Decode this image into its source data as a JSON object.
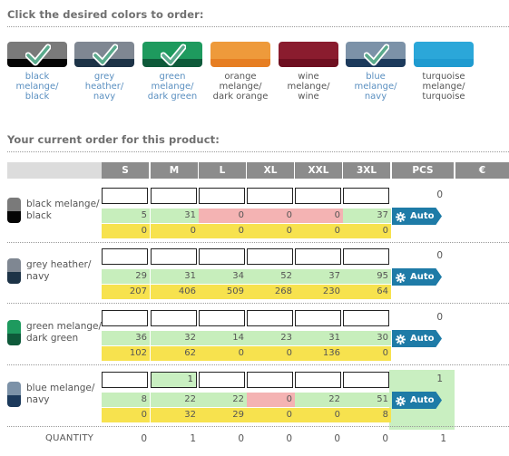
{
  "color_section": {
    "title": "Click the desired colors to order:",
    "swatches": [
      {
        "label": "black melange/ black",
        "top": "#7a7a7a",
        "bottom": "#050505",
        "selected": true
      },
      {
        "label": "grey heather/ navy",
        "top": "#7f8792",
        "bottom": "#1d3347",
        "selected": true
      },
      {
        "label": "green melange/ dark green",
        "top": "#1e9a5e",
        "bottom": "#0e5a3a",
        "selected": true
      },
      {
        "label": "orange melange/ dark orange",
        "top": "#ee9a3b",
        "bottom": "#e67e22",
        "selected": false
      },
      {
        "label": "wine melange/ wine",
        "top": "#8a1c2e",
        "bottom": "#6e0f20",
        "selected": false
      },
      {
        "label": "blue melange/ navy",
        "top": "#7c92a8",
        "bottom": "#1c3a5c",
        "selected": true
      },
      {
        "label": "turquoise melange/ turquoise",
        "top": "#2ba7d9",
        "bottom": "#1f9bd0",
        "selected": false
      }
    ]
  },
  "order_section": {
    "title": "Your current order for this product:",
    "headers": [
      "S",
      "M",
      "L",
      "XL",
      "XXL",
      "3XL",
      "PCS",
      "€"
    ],
    "auto_label": "Auto",
    "rows": [
      {
        "name": "black melange/ black",
        "top": "#7a7a7a",
        "bottom": "#050505",
        "quantities": [
          "",
          "",
          "",
          "",
          "",
          ""
        ],
        "stock": [
          "5",
          "31",
          "0",
          "0",
          "0",
          "37"
        ],
        "stock_status": [
          "green",
          "green",
          "red",
          "red",
          "red",
          "green"
        ],
        "incoming": [
          "0",
          "0",
          "0",
          "0",
          "0",
          "0"
        ],
        "pcs": "0",
        "highlighted": false
      },
      {
        "name": "grey heather/ navy",
        "top": "#7f8792",
        "bottom": "#1d3347",
        "quantities": [
          "",
          "",
          "",
          "",
          "",
          ""
        ],
        "stock": [
          "29",
          "31",
          "34",
          "52",
          "37",
          "95"
        ],
        "stock_status": [
          "green",
          "green",
          "green",
          "green",
          "green",
          "green"
        ],
        "incoming": [
          "207",
          "406",
          "509",
          "268",
          "230",
          "64"
        ],
        "pcs": "0",
        "highlighted": false
      },
      {
        "name": "green melange/ dark green",
        "top": "#1e9a5e",
        "bottom": "#0e5a3a",
        "quantities": [
          "",
          "",
          "",
          "",
          "",
          ""
        ],
        "stock": [
          "36",
          "32",
          "14",
          "23",
          "31",
          "30"
        ],
        "stock_status": [
          "green",
          "green",
          "green",
          "green",
          "green",
          "green"
        ],
        "incoming": [
          "102",
          "62",
          "0",
          "0",
          "136",
          "0"
        ],
        "pcs": "0",
        "highlighted": false
      },
      {
        "name": "blue melange/ navy",
        "top": "#7c92a8",
        "bottom": "#1c3a5c",
        "quantities": [
          "",
          "1",
          "",
          "",
          "",
          ""
        ],
        "stock": [
          "8",
          "22",
          "22",
          "0",
          "22",
          "51"
        ],
        "stock_status": [
          "green",
          "green",
          "green",
          "red",
          "green",
          "green"
        ],
        "incoming": [
          "0",
          "32",
          "29",
          "0",
          "0",
          "8"
        ],
        "pcs": "1",
        "highlighted": true
      }
    ],
    "quantity_label": "QUANTITY",
    "totals": [
      "0",
      "1",
      "0",
      "0",
      "0",
      "0",
      "1"
    ]
  }
}
